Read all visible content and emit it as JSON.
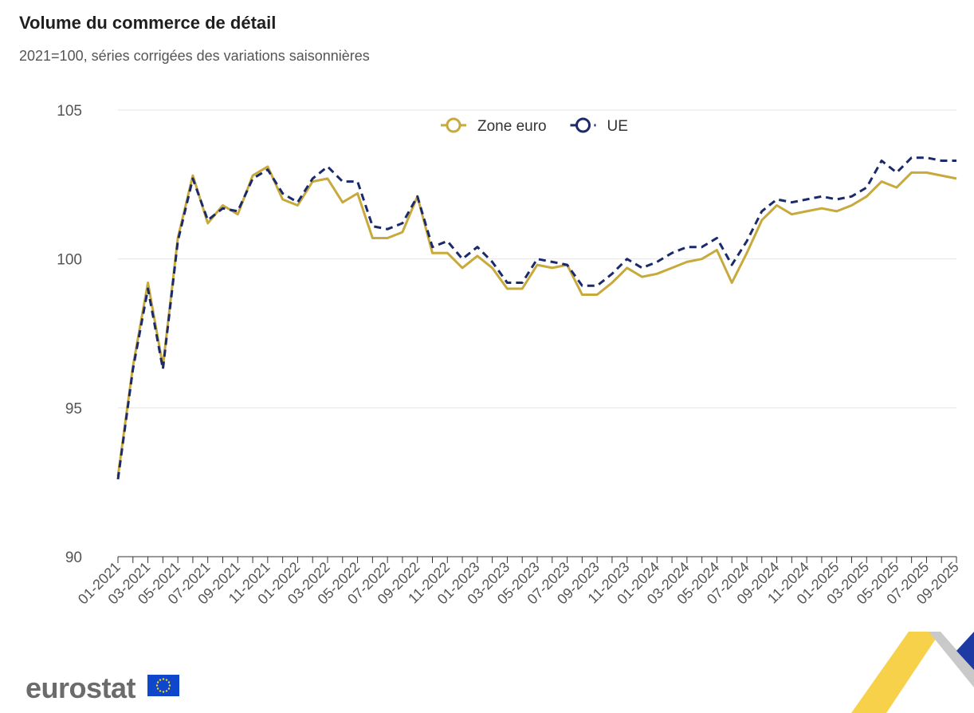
{
  "header": {
    "title": "Volume du commerce de détail",
    "subtitle": "2021=100, séries corrigées des variations saisonnières"
  },
  "footer": {
    "logo_text": "eurostat"
  },
  "colors": {
    "zone_euro": "#c8a93b",
    "ue": "#1b2a6b",
    "grid": "#e6e6e6",
    "axis": "#555555"
  },
  "chart_data": {
    "type": "line",
    "title": "Volume du commerce de détail",
    "subtitle": "2021=100, séries corrigées des variations saisonnières",
    "ylim": [
      90,
      105
    ],
    "yticks": [
      90,
      95,
      100,
      105
    ],
    "grid": true,
    "legend_position": "top-center",
    "x": [
      "01-2021",
      "02-2021",
      "03-2021",
      "04-2021",
      "05-2021",
      "06-2021",
      "07-2021",
      "08-2021",
      "09-2021",
      "10-2021",
      "11-2021",
      "12-2021",
      "01-2022",
      "02-2022",
      "03-2022",
      "04-2022",
      "05-2022",
      "06-2022",
      "07-2022",
      "08-2022",
      "09-2022",
      "10-2022",
      "11-2022",
      "12-2022",
      "01-2023",
      "02-2023",
      "03-2023",
      "04-2023",
      "05-2023",
      "06-2023",
      "07-2023",
      "08-2023",
      "09-2023",
      "10-2023",
      "11-2023",
      "12-2023",
      "01-2024",
      "02-2024",
      "03-2024",
      "04-2024",
      "05-2024",
      "06-2024",
      "07-2024",
      "08-2024",
      "09-2024",
      "10-2024",
      "11-2024",
      "12-2024",
      "01-2025",
      "02-2025",
      "03-2025",
      "04-2025",
      "05-2025",
      "06-2025",
      "07-2025",
      "08-2025",
      "09-2025"
    ],
    "xtick_labels": [
      "01-2021",
      "03-2021",
      "05-2021",
      "07-2021",
      "09-2021",
      "11-2021",
      "01-2022",
      "03-2022",
      "05-2022",
      "07-2022",
      "09-2022",
      "11-2022",
      "01-2023",
      "03-2023",
      "05-2023",
      "07-2023",
      "09-2023",
      "11-2023",
      "01-2024",
      "03-2024",
      "05-2024",
      "07-2024",
      "09-2024",
      "11-2024",
      "01-2025",
      "03-2025",
      "05-2025",
      "07-2025",
      "09-2025"
    ],
    "series": [
      {
        "name": "Zone euro",
        "style": "solid",
        "values": [
          92.7,
          96.4,
          99.2,
          96.4,
          100.7,
          102.8,
          101.2,
          101.8,
          101.5,
          102.8,
          103.1,
          102.0,
          101.8,
          102.6,
          102.7,
          101.9,
          102.2,
          100.7,
          100.7,
          100.9,
          102.1,
          100.2,
          100.2,
          99.7,
          100.1,
          99.7,
          99.0,
          99.0,
          99.8,
          99.7,
          99.8,
          98.8,
          98.8,
          99.2,
          99.7,
          99.4,
          99.5,
          99.7,
          99.9,
          100.0,
          100.3,
          99.2,
          100.2,
          101.3,
          101.8,
          101.5,
          101.6,
          101.7,
          101.6,
          101.8,
          102.1,
          102.6,
          102.4,
          102.9,
          102.9,
          102.8,
          102.7
        ]
      },
      {
        "name": "UE",
        "style": "dashed",
        "values": [
          92.6,
          96.3,
          99.0,
          96.3,
          100.6,
          102.7,
          101.3,
          101.7,
          101.6,
          102.7,
          103.0,
          102.2,
          101.9,
          102.7,
          103.1,
          102.6,
          102.6,
          101.1,
          101.0,
          101.2,
          102.1,
          100.4,
          100.6,
          100.0,
          100.4,
          99.9,
          99.2,
          99.2,
          100.0,
          99.9,
          99.8,
          99.1,
          99.1,
          99.5,
          100.0,
          99.7,
          99.9,
          100.2,
          100.4,
          100.4,
          100.7,
          99.8,
          100.6,
          101.6,
          102.0,
          101.9,
          102.0,
          102.1,
          102.0,
          102.1,
          102.4,
          103.3,
          102.9,
          103.4,
          103.4,
          103.3,
          103.3
        ]
      }
    ]
  }
}
